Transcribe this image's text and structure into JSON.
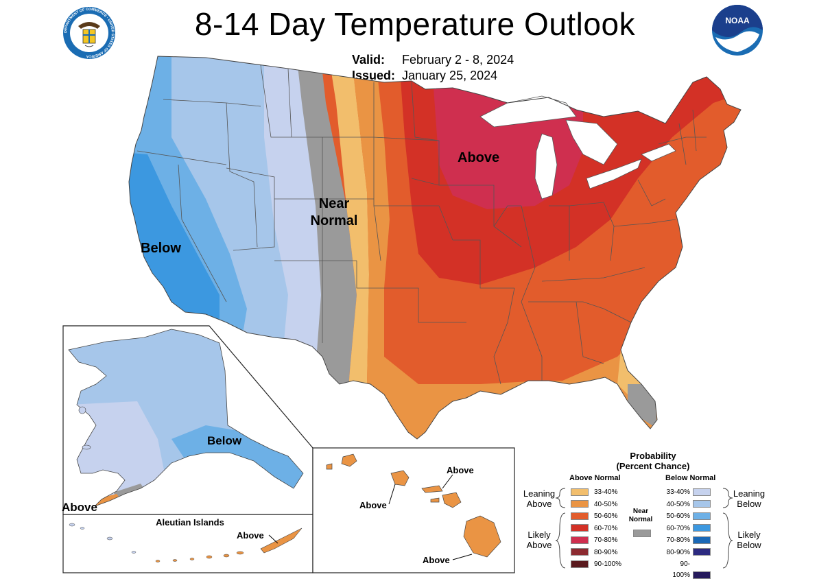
{
  "header": {
    "title": "8-14 Day Temperature Outlook",
    "valid_label": "Valid:",
    "valid_value": "February 2 - 8, 2024",
    "issued_label": "Issued:",
    "issued_value": "January 25, 2024"
  },
  "logos": {
    "commerce": "department-of-commerce-seal",
    "commerce_text": "DEPARTMENT OF COMMERCE · UNITED STATES OF AMERICA",
    "noaa": "noaa-logo",
    "noaa_text": "NOAA"
  },
  "map_labels": {
    "conus_above": "Above",
    "conus_near_1": "Near",
    "conus_near_2": "Normal",
    "conus_below": "Below",
    "alaska_below": "Below",
    "alaska_above": "Above",
    "aleutian_title": "Aleutian Islands",
    "aleutian_above": "Above",
    "hawaii_above_1": "Above",
    "hawaii_above_2": "Above",
    "hawaii_above_3": "Above"
  },
  "colors": {
    "above_33_40": "#f2be6c",
    "above_40_50": "#ea9444",
    "above_50_60": "#e25c2c",
    "above_60_70": "#d33126",
    "above_70_80": "#cf2f4f",
    "above_80_90": "#8c2a30",
    "above_90_100": "#5a1a1e",
    "below_33_40": "#c6d2ee",
    "below_40_50": "#a6c6ea",
    "below_50_60": "#6db0e6",
    "below_60_70": "#3c98e0",
    "below_70_80": "#1a68b6",
    "below_80_90": "#2c2a80",
    "below_90_100": "#261a5c",
    "near_normal": "#9a9a9a",
    "water": "#ffffff",
    "state_lines": "#555555"
  },
  "legend": {
    "title_1": "Probability",
    "title_2": "(Percent Chance)",
    "above_header": "Above Normal",
    "below_header": "Below Normal",
    "near_normal_1": "Near",
    "near_normal_2": "Normal",
    "leaning_above_1": "Leaning",
    "leaning_above_2": "Above",
    "likely_above_1": "Likely",
    "likely_above_2": "Above",
    "leaning_below_1": "Leaning",
    "leaning_below_2": "Below",
    "likely_below_1": "Likely",
    "likely_below_2": "Below",
    "ranges": [
      "33-40%",
      "40-50%",
      "50-60%",
      "60-70%",
      "70-80%",
      "80-90%",
      "90-100%"
    ]
  }
}
